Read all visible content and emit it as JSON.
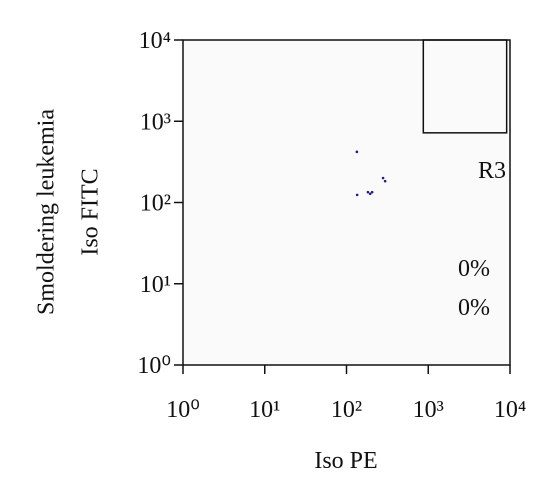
{
  "chart_data": {
    "type": "scatter",
    "y_titles": [
      "Smoldering leukemia",
      "Iso FITC"
    ],
    "x_title": "Iso PE",
    "x": [
      134,
      135,
      183,
      206,
      280,
      297,
      195
    ],
    "y": [
      420,
      124,
      134,
      134,
      200,
      183,
      128
    ],
    "color": "#1c1c8c",
    "log_x": true,
    "log_y": true,
    "xlim": [
      1,
      10000
    ],
    "ylim": [
      1,
      10000
    ],
    "xticks": [
      {
        "value": 1,
        "label": "10⁰"
      },
      {
        "value": 10,
        "label": "10¹"
      },
      {
        "value": 100,
        "label": "10²"
      },
      {
        "value": 1000,
        "label": "10³"
      },
      {
        "value": 10000,
        "label": "10⁴"
      }
    ],
    "yticks": [
      {
        "value": 1,
        "label": "10⁰"
      },
      {
        "value": 10,
        "label": "10¹"
      },
      {
        "value": 100,
        "label": "10²"
      },
      {
        "value": 1000,
        "label": "10³"
      },
      {
        "value": 10000,
        "label": "10⁴"
      }
    ],
    "gate": {
      "label": "R3",
      "x": [
        870,
        9100
      ],
      "y": [
        720,
        10000
      ]
    },
    "annotations": [
      "0%",
      "0%"
    ]
  }
}
